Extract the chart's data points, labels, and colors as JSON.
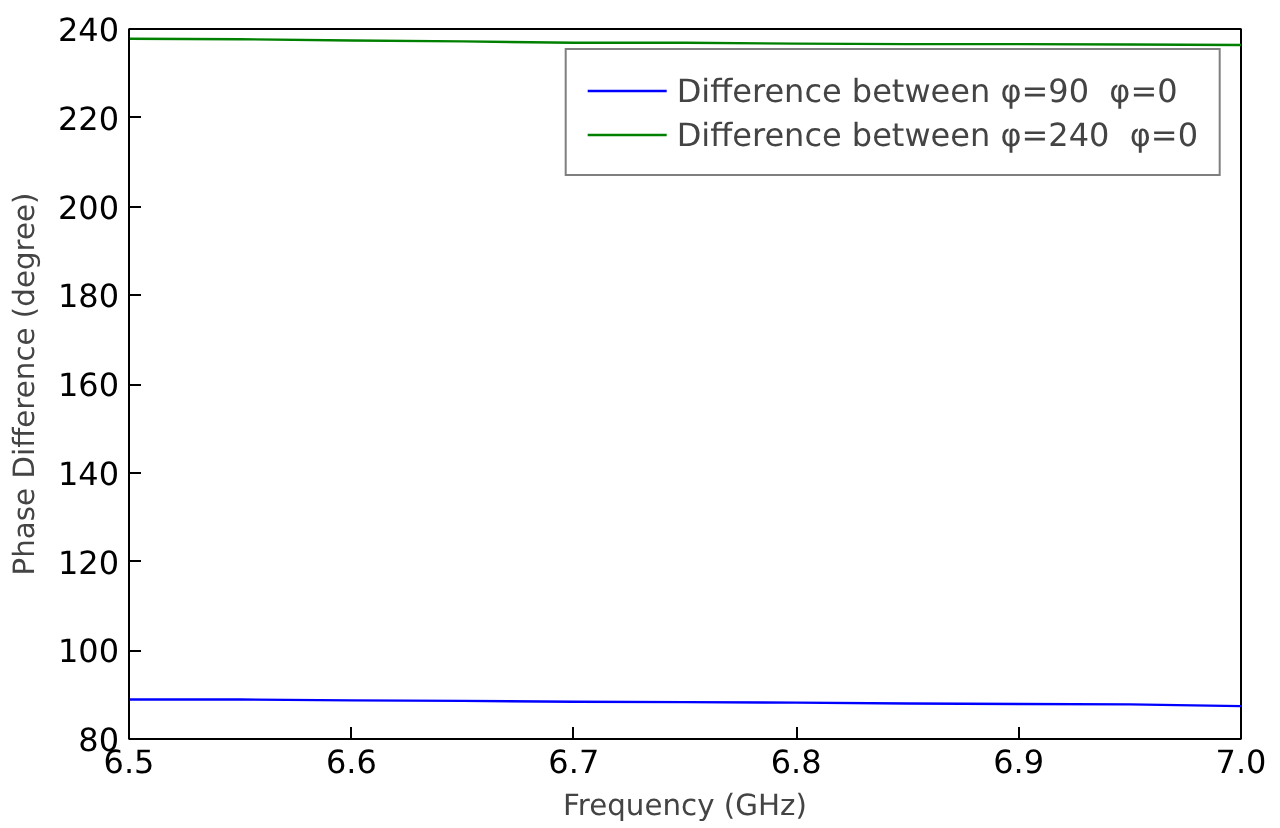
{
  "chart_data": {
    "type": "line",
    "xlabel": "Frequency (GHz)",
    "ylabel": "Phase Difference (degree)",
    "x": [
      6.5,
      6.55,
      6.6,
      6.65,
      6.7,
      6.75,
      6.8,
      6.85,
      6.9,
      6.95,
      7.0
    ],
    "series": [
      {
        "name": "Difference between φ=90  φ=0",
        "color": "#0000ff",
        "values": [
          88.9,
          88.9,
          88.7,
          88.6,
          88.4,
          88.3,
          88.2,
          88.0,
          87.9,
          87.8,
          87.4
        ]
      },
      {
        "name": "Difference between φ=240  φ=0",
        "color": "#008000",
        "values": [
          237.8,
          237.7,
          237.4,
          237.2,
          236.9,
          236.9,
          236.7,
          236.6,
          236.6,
          236.5,
          236.4
        ]
      }
    ],
    "xlim": [
      6.5,
      7.0
    ],
    "ylim": [
      80,
      240
    ],
    "xticks": [
      6.5,
      6.6,
      6.7,
      6.8,
      6.9,
      {
        "value": 7.0,
        "label": "7.0"
      }
    ],
    "yticks": [
      80,
      100,
      120,
      140,
      160,
      180,
      200,
      220,
      240
    ],
    "grid": false,
    "legend": "top right",
    "marker": "none",
    "line_style": "solid"
  }
}
